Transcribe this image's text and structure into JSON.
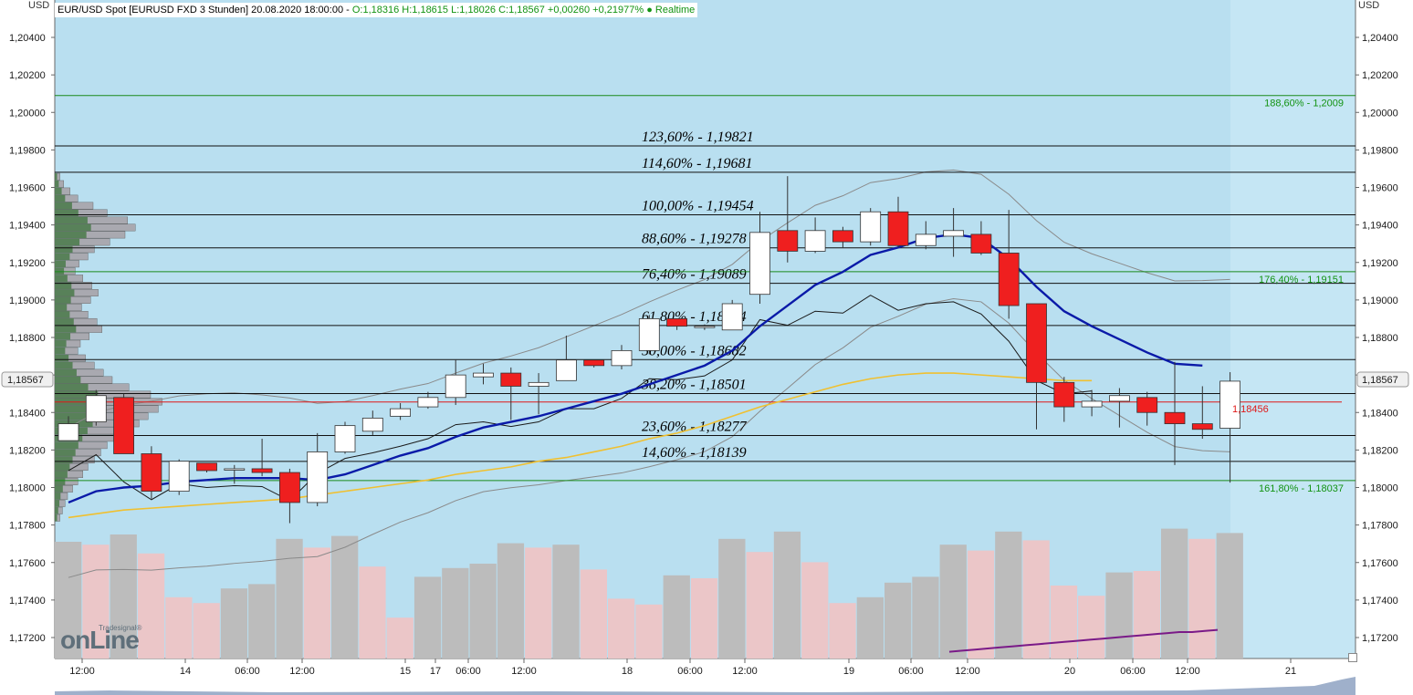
{
  "header": {
    "instrument": "EUR/USD Spot [EURUSD FXD 3 Stunden] 20.08.2020 18:00:00 - ",
    "ohlc": "O:1,18316 H:1,18615 L:1,18026 C:1,18567 +0,00260 +0,21977%",
    "status": "● Realtime"
  },
  "axis": {
    "currency_left": "USD",
    "currency_right": "USD",
    "y_ticks": [
      "1,20400",
      "1,20200",
      "1,20000",
      "1,19800",
      "1,19600",
      "1,19400",
      "1,19200",
      "1,19000",
      "1,18800",
      "1,18600",
      "1,18400",
      "1,18200",
      "1,18000",
      "1,17800",
      "1,17600",
      "1,17400",
      "1,17200"
    ],
    "x_labels": [
      "12:00",
      "14",
      "06:00",
      "12:00",
      "15",
      "17",
      "06:00",
      "12:00",
      "18",
      "06:00",
      "12:00",
      "19",
      "06:00",
      "12:00",
      "20",
      "06:00",
      "12:00",
      "21"
    ]
  },
  "price_markers": {
    "last_left": "1,18567",
    "last_right": "1,18567",
    "red_line_label": "1,18456"
  },
  "logo": {
    "brand": "onLine",
    "vendor": "Tradesignal®"
  },
  "colors": {
    "background": "#b9dff0",
    "bull_body": "#ffffff",
    "bear_body": "#ef1f1f",
    "ema_fast": "#0a1aa8",
    "ema_slow": "#f0c030",
    "red_level": "#e01818",
    "green_level": "#1a8a1a",
    "volume_up": "#bcbcbc",
    "volume_down": "#ebc6c8",
    "volume_ma": "#7a1a88",
    "volume_profile": "#4f7c50"
  },
  "chart_data": {
    "type": "candlestick",
    "title": "EUR/USD Spot [EURUSD FXD 3 Stunden]",
    "ylim": [
      1.171,
      1.206
    ],
    "grid": true,
    "candles": [
      {
        "o": 1.1825,
        "h": 1.1838,
        "l": 1.1825,
        "c": 1.1834
      },
      {
        "o": 1.1835,
        "h": 1.1852,
        "l": 1.1833,
        "c": 1.1849
      },
      {
        "o": 1.1848,
        "h": 1.185,
        "l": 1.1818,
        "c": 1.1818
      },
      {
        "o": 1.1818,
        "h": 1.1822,
        "l": 1.1794,
        "c": 1.1798
      },
      {
        "o": 1.1798,
        "h": 1.1815,
        "l": 1.1796,
        "c": 1.1814
      },
      {
        "o": 1.1813,
        "h": 1.1813,
        "l": 1.1808,
        "c": 1.1809
      },
      {
        "o": 1.181,
        "h": 1.1812,
        "l": 1.1802,
        "c": 1.181
      },
      {
        "o": 1.181,
        "h": 1.1826,
        "l": 1.1806,
        "c": 1.1808
      },
      {
        "o": 1.1808,
        "h": 1.181,
        "l": 1.1781,
        "c": 1.1792
      },
      {
        "o": 1.1792,
        "h": 1.1829,
        "l": 1.179,
        "c": 1.1819
      },
      {
        "o": 1.1819,
        "h": 1.1835,
        "l": 1.1818,
        "c": 1.1833
      },
      {
        "o": 1.183,
        "h": 1.1841,
        "l": 1.1828,
        "c": 1.1837
      },
      {
        "o": 1.1838,
        "h": 1.1845,
        "l": 1.1836,
        "c": 1.1842
      },
      {
        "o": 1.1843,
        "h": 1.1851,
        "l": 1.1842,
        "c": 1.1848
      },
      {
        "o": 1.1848,
        "h": 1.1868,
        "l": 1.1844,
        "c": 1.186
      },
      {
        "o": 1.1859,
        "h": 1.1866,
        "l": 1.1855,
        "c": 1.1861
      },
      {
        "o": 1.1861,
        "h": 1.1864,
        "l": 1.1836,
        "c": 1.1854
      },
      {
        "o": 1.1854,
        "h": 1.1861,
        "l": 1.1839,
        "c": 1.1856
      },
      {
        "o": 1.1857,
        "h": 1.1881,
        "l": 1.1857,
        "c": 1.1868
      },
      {
        "o": 1.1868,
        "h": 1.1868,
        "l": 1.1864,
        "c": 1.1865
      },
      {
        "o": 1.1865,
        "h": 1.1876,
        "l": 1.1863,
        "c": 1.1873
      },
      {
        "o": 1.1873,
        "h": 1.1892,
        "l": 1.1871,
        "c": 1.189
      },
      {
        "o": 1.189,
        "h": 1.189,
        "l": 1.1884,
        "c": 1.1886
      },
      {
        "o": 1.1886,
        "h": 1.1887,
        "l": 1.1884,
        "c": 1.1886
      },
      {
        "o": 1.1884,
        "h": 1.19,
        "l": 1.1884,
        "c": 1.1898
      },
      {
        "o": 1.1903,
        "h": 1.1947,
        "l": 1.1898,
        "c": 1.1936
      },
      {
        "o": 1.1937,
        "h": 1.1966,
        "l": 1.192,
        "c": 1.1926
      },
      {
        "o": 1.1926,
        "h": 1.1944,
        "l": 1.1925,
        "c": 1.1937
      },
      {
        "o": 1.1937,
        "h": 1.1939,
        "l": 1.1928,
        "c": 1.1931
      },
      {
        "o": 1.1931,
        "h": 1.1949,
        "l": 1.1929,
        "c": 1.1947
      },
      {
        "o": 1.1947,
        "h": 1.1955,
        "l": 1.1928,
        "c": 1.1929
      },
      {
        "o": 1.1929,
        "h": 1.1942,
        "l": 1.1927,
        "c": 1.1935
      },
      {
        "o": 1.1934,
        "h": 1.1949,
        "l": 1.1923,
        "c": 1.1937
      },
      {
        "o": 1.1935,
        "h": 1.1942,
        "l": 1.1924,
        "c": 1.1925
      },
      {
        "o": 1.1925,
        "h": 1.1948,
        "l": 1.189,
        "c": 1.1897
      },
      {
        "o": 1.1898,
        "h": 1.1898,
        "l": 1.1831,
        "c": 1.1856
      },
      {
        "o": 1.1856,
        "h": 1.1859,
        "l": 1.1835,
        "c": 1.1843
      },
      {
        "o": 1.1843,
        "h": 1.1852,
        "l": 1.1838,
        "c": 1.1846
      },
      {
        "o": 1.1846,
        "h": 1.1853,
        "l": 1.1832,
        "c": 1.1849
      },
      {
        "o": 1.1848,
        "h": 1.1851,
        "l": 1.1833,
        "c": 1.184
      },
      {
        "o": 1.184,
        "h": 1.1867,
        "l": 1.1812,
        "c": 1.1834
      },
      {
        "o": 1.1834,
        "h": 1.1854,
        "l": 1.1826,
        "c": 1.1831
      },
      {
        "o": 1.18316,
        "h": 1.18615,
        "l": 1.18026,
        "c": 1.18567
      }
    ],
    "ema_fast": [
      1.1792,
      1.1798,
      1.18,
      1.1801,
      1.1803,
      1.1804,
      1.1805,
      1.1805,
      1.1805,
      1.1804,
      1.1807,
      1.1812,
      1.1817,
      1.1821,
      1.1827,
      1.1832,
      1.1835,
      1.1838,
      1.1842,
      1.1846,
      1.185,
      1.1855,
      1.186,
      1.1865,
      1.1873,
      1.1886,
      1.1897,
      1.1908,
      1.1915,
      1.1924,
      1.1928,
      1.1933,
      1.1935,
      1.1933,
      1.1922,
      1.1907,
      1.1894,
      1.1886,
      1.1879,
      1.1872,
      1.1866,
      1.1865
    ],
    "ema_slow": [
      1.1784,
      1.1786,
      1.1788,
      1.1789,
      1.179,
      1.1791,
      1.1792,
      1.1793,
      1.1794,
      1.1796,
      1.1798,
      1.18,
      1.1802,
      1.1804,
      1.1807,
      1.1809,
      1.1811,
      1.1814,
      1.1816,
      1.1819,
      1.1822,
      1.1826,
      1.1829,
      1.1833,
      1.1838,
      1.1843,
      1.1847,
      1.1851,
      1.1855,
      1.1858,
      1.186,
      1.1861,
      1.1861,
      1.186,
      1.1859,
      1.1858,
      1.1857,
      1.1857
    ],
    "fib_levels": [
      {
        "label": "123,60% - 1,19821",
        "value": 1.19821
      },
      {
        "label": "114,60% - 1,19681",
        "value": 1.19681
      },
      {
        "label": "100,00% - 1,19454",
        "value": 1.19454
      },
      {
        "label": "88,60% - 1,19278",
        "value": 1.19278
      },
      {
        "label": "76,40% - 1,19089",
        "value": 1.19089
      },
      {
        "label": "61,80% - 1,18864",
        "value": 1.18864
      },
      {
        "label": "50,00% - 1,18682",
        "value": 1.18682
      },
      {
        "label": "38,20% - 1,18501",
        "value": 1.18501
      },
      {
        "label": "23,60% - 1,18277",
        "value": 1.18277
      },
      {
        "label": "14,60% - 1,18139",
        "value": 1.18139
      }
    ],
    "extension_levels": [
      {
        "label": "188,60% - 1,2009",
        "value": 1.2009
      },
      {
        "label": "176,40% - 1,19151",
        "value": 1.19151
      },
      {
        "label": "161,80% - 1,18037",
        "value": 1.18037
      }
    ],
    "red_level": 1.18456,
    "volume": [
      {
        "v": 0.8,
        "up": true
      },
      {
        "v": 0.78,
        "up": false
      },
      {
        "v": 0.85,
        "up": true
      },
      {
        "v": 0.72,
        "up": false
      },
      {
        "v": 0.42,
        "up": false
      },
      {
        "v": 0.38,
        "up": false
      },
      {
        "v": 0.48,
        "up": true
      },
      {
        "v": 0.51,
        "up": true
      },
      {
        "v": 0.82,
        "up": true
      },
      {
        "v": 0.76,
        "up": false
      },
      {
        "v": 0.84,
        "up": true
      },
      {
        "v": 0.63,
        "up": false
      },
      {
        "v": 0.28,
        "up": false
      },
      {
        "v": 0.56,
        "up": true
      },
      {
        "v": 0.62,
        "up": true
      },
      {
        "v": 0.65,
        "up": true
      },
      {
        "v": 0.79,
        "up": true
      },
      {
        "v": 0.76,
        "up": false
      },
      {
        "v": 0.78,
        "up": true
      },
      {
        "v": 0.61,
        "up": false
      },
      {
        "v": 0.41,
        "up": false
      },
      {
        "v": 0.37,
        "up": false
      },
      {
        "v": 0.57,
        "up": true
      },
      {
        "v": 0.55,
        "up": false
      },
      {
        "v": 0.82,
        "up": true
      },
      {
        "v": 0.73,
        "up": false
      },
      {
        "v": 0.87,
        "up": true
      },
      {
        "v": 0.66,
        "up": false
      },
      {
        "v": 0.38,
        "up": false
      },
      {
        "v": 0.42,
        "up": true
      },
      {
        "v": 0.52,
        "up": true
      },
      {
        "v": 0.56,
        "up": true
      },
      {
        "v": 0.78,
        "up": true
      },
      {
        "v": 0.74,
        "up": false
      },
      {
        "v": 0.87,
        "up": true
      },
      {
        "v": 0.81,
        "up": false
      },
      {
        "v": 0.5,
        "up": false
      },
      {
        "v": 0.43,
        "up": false
      },
      {
        "v": 0.59,
        "up": true
      },
      {
        "v": 0.6,
        "up": false
      },
      {
        "v": 0.89,
        "up": true
      },
      {
        "v": 0.82,
        "up": false
      },
      {
        "v": 0.86,
        "up": true
      }
    ],
    "volume_ma": [
      0.02,
      0.03,
      0.04,
      0.05,
      0.06,
      0.07,
      0.08,
      0.09,
      0.1,
      0.11,
      0.12,
      0.13,
      0.14,
      0.15,
      0.16,
      0.17,
      0.18,
      0.19,
      0.2,
      0.2,
      0.21,
      0.22
    ],
    "volume_profile": [
      0.04,
      0.07,
      0.12,
      0.18,
      0.3,
      0.41,
      0.57,
      0.63,
      0.55,
      0.43,
      0.31,
      0.26,
      0.19,
      0.16,
      0.22,
      0.29,
      0.34,
      0.28,
      0.21,
      0.26,
      0.33,
      0.37,
      0.27,
      0.2,
      0.18,
      0.24,
      0.31,
      0.38,
      0.45,
      0.58,
      0.75,
      0.84,
      0.81,
      0.73,
      0.66,
      0.57,
      0.48,
      0.41,
      0.36,
      0.31,
      0.26,
      0.22,
      0.18,
      0.14,
      0.1,
      0.08,
      0.06,
      0.04
    ]
  }
}
